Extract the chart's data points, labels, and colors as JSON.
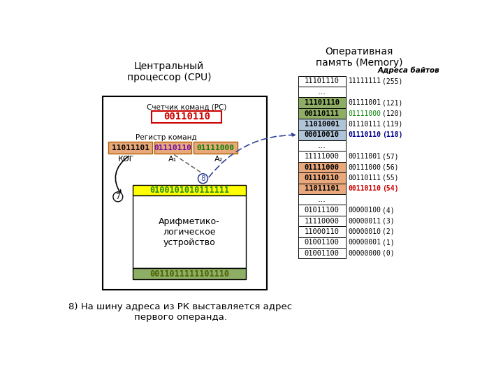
{
  "title_cpu": "Центральный\nпроцессор (CPU)",
  "title_mem": "Оперативная\nпамять (Memory)",
  "addr_label": "Адреса байтов",
  "pc_label": "Счетчик команд (PC)",
  "pc_value": "00110110",
  "rk_label": "Регистр команд",
  "rk_cells": [
    "11011101",
    "01110110",
    "01111000"
  ],
  "alu_input": "0100101010111111",
  "alu_text": "Арифметико-\nлогическое\nустройство",
  "alu_output": "0011011111101110",
  "mem_cells": [
    {
      "value": "11101110",
      "addr": "11111111",
      "num": "(255)",
      "bg": "#ffffff",
      "addr_color": "#000000",
      "num_color": "#000000",
      "bold_addr": false
    },
    {
      "value": "...",
      "addr": "",
      "num": "",
      "bg": "#ffffff",
      "addr_color": "#000000",
      "num_color": "#000000",
      "bold_addr": false
    },
    {
      "value": "11101110",
      "addr": "01111001",
      "num": "(121)",
      "bg": "#8fae65",
      "addr_color": "#000000",
      "num_color": "#000000",
      "bold_addr": false
    },
    {
      "value": "00110111",
      "addr": "01111000",
      "num": "(120)",
      "bg": "#8fae65",
      "addr_color": "#008000",
      "num_color": "#000000",
      "bold_addr": false
    },
    {
      "value": "11010001",
      "addr": "01110111",
      "num": "(119)",
      "bg": "#b0c4d8",
      "addr_color": "#000000",
      "num_color": "#000000",
      "bold_addr": false
    },
    {
      "value": "00010010",
      "addr": "01110110",
      "num": "(118)",
      "bg": "#b0c4d8",
      "addr_color": "#00008b",
      "num_color": "#00008b",
      "bold_addr": true
    },
    {
      "value": "...",
      "addr": "",
      "num": "",
      "bg": "#ffffff",
      "addr_color": "#000000",
      "num_color": "#000000",
      "bold_addr": false
    },
    {
      "value": "11111000",
      "addr": "00111001",
      "num": "(57)",
      "bg": "#ffffff",
      "addr_color": "#000000",
      "num_color": "#000000",
      "bold_addr": false
    },
    {
      "value": "01111000",
      "addr": "00111000",
      "num": "(56)",
      "bg": "#e8a87c",
      "addr_color": "#000000",
      "num_color": "#000000",
      "bold_addr": false
    },
    {
      "value": "01110110",
      "addr": "00110111",
      "num": "(55)",
      "bg": "#e8a87c",
      "addr_color": "#000000",
      "num_color": "#000000",
      "bold_addr": false
    },
    {
      "value": "11011101",
      "addr": "00110110",
      "num": "(54)",
      "bg": "#e8a87c",
      "addr_color": "#cc0000",
      "num_color": "#cc0000",
      "bold_addr": true
    },
    {
      "value": "...",
      "addr": "",
      "num": "",
      "bg": "#ffffff",
      "addr_color": "#000000",
      "num_color": "#000000",
      "bold_addr": false
    },
    {
      "value": "01011100",
      "addr": "00000100",
      "num": "(4)",
      "bg": "#ffffff",
      "addr_color": "#000000",
      "num_color": "#000000",
      "bold_addr": false
    },
    {
      "value": "11110000",
      "addr": "00000011",
      "num": "(3)",
      "bg": "#ffffff",
      "addr_color": "#000000",
      "num_color": "#000000",
      "bold_addr": false
    },
    {
      "value": "11000110",
      "addr": "00000010",
      "num": "(2)",
      "bg": "#ffffff",
      "addr_color": "#000000",
      "num_color": "#000000",
      "bold_addr": false
    },
    {
      "value": "01001100",
      "addr": "00000001",
      "num": "(1)",
      "bg": "#ffffff",
      "addr_color": "#000000",
      "num_color": "#000000",
      "bold_addr": false
    },
    {
      "value": "01001100",
      "addr": "00000000",
      "num": "(0)",
      "bg": "#ffffff",
      "addr_color": "#000000",
      "num_color": "#000000",
      "bold_addr": false
    }
  ],
  "footnote": "8) На шину адреса из РК выставляется адрес\nпервого операнда.",
  "rk_colors": [
    "#e8a87c",
    "#e8a87c",
    "#e8a87c"
  ],
  "rk_text_colors": [
    "#000000",
    "#6a0dad",
    "#008000"
  ]
}
